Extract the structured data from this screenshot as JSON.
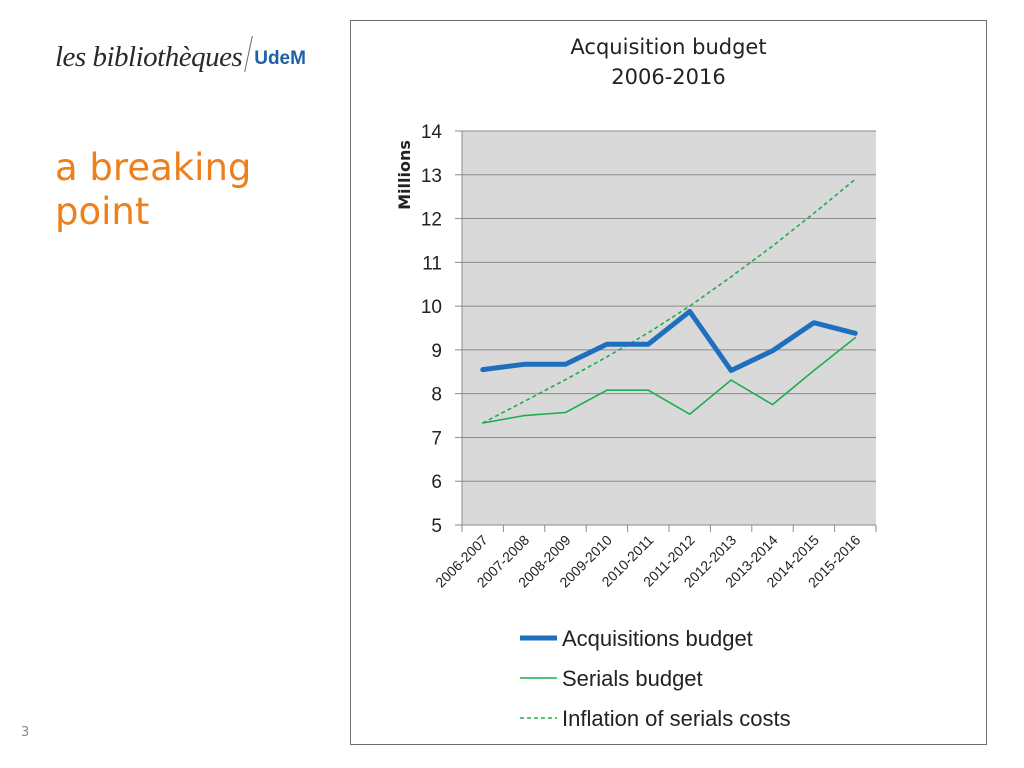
{
  "logo": {
    "script_text": "les bibliothèques",
    "brand_text": "UdeM",
    "brand_color": "#1f5fa8"
  },
  "slide": {
    "headline_line1": "a breaking",
    "headline_line2": "point",
    "headline_color": "#ee7f1b",
    "page_number": "3"
  },
  "chart_data": {
    "type": "line",
    "title": "Acquisition budget",
    "subtitle": "2006-2016",
    "xlabel": "",
    "ylabel": "Millions",
    "ylim": [
      5,
      14
    ],
    "yticks": [
      5,
      6,
      7,
      8,
      9,
      10,
      11,
      12,
      13,
      14
    ],
    "grid": true,
    "legend_position": "bottom",
    "categories": [
      "2006-2007",
      "2007-2008",
      "2008-2009",
      "2009-2010",
      "2010-2011",
      "2011-2012",
      "2012-2013",
      "2013-2014",
      "2014-2015",
      "2015-2016"
    ],
    "series": [
      {
        "name": "Acquisitions budget",
        "color": "#1f6fbf",
        "style": "thick",
        "values": [
          8.55,
          8.67,
          8.67,
          9.13,
          9.13,
          9.88,
          8.53,
          8.98,
          9.62,
          9.38
        ]
      },
      {
        "name": "Serials budget",
        "color": "#1fad4f",
        "style": "solid",
        "values": [
          7.33,
          7.5,
          7.57,
          8.08,
          8.08,
          7.53,
          8.31,
          7.75,
          8.53,
          9.28
        ]
      },
      {
        "name": "Inflation of serials costs",
        "color": "#1fad4f",
        "style": "dashed",
        "values": [
          7.33,
          7.82,
          8.32,
          8.84,
          9.39,
          10.0,
          10.67,
          11.37,
          12.12,
          12.9
        ]
      }
    ]
  }
}
